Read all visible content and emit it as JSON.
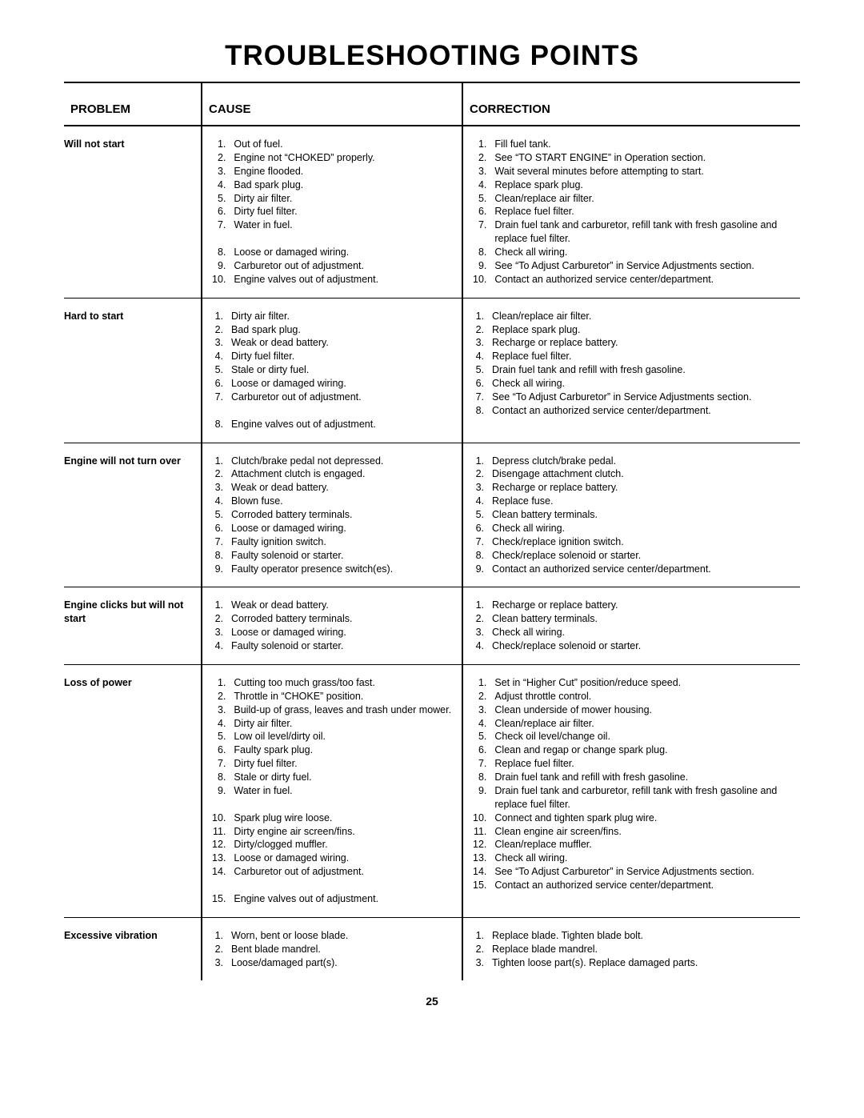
{
  "title": "TROUBLESHOOTING POINTS",
  "page_number": "25",
  "columns": {
    "problem": "PROBLEM",
    "cause": "CAUSE",
    "correction": "CORRECTION"
  },
  "sections": [
    {
      "problem": "Will not start",
      "causes": [
        "Out of fuel.",
        "Engine not “CHOKED” properly.",
        "Engine flooded.",
        "Bad spark plug.",
        "Dirty air filter.",
        "Dirty fuel filter.",
        "Water in fuel.",
        "Loose or damaged wiring.",
        "Carburetor out of adjustment.",
        "Engine valves out of adjustment."
      ],
      "corrections": [
        "Fill fuel tank.",
        "See “TO START ENGINE” in Operation section.",
        "Wait several minutes before attempting to start.",
        "Replace spark plug.",
        "Clean/replace air filter.",
        "Replace fuel filter.",
        "Drain fuel tank and carburetor, refill tank with fresh gasoline and replace fuel filter.",
        "Check all wiring.",
        "See “To Adjust Carburetor” in Service Adjustments section.",
        "Contact an authorized service center/department."
      ],
      "cause_breaks": [
        7
      ],
      "correction_breaks": []
    },
    {
      "problem": "Hard to start",
      "causes": [
        "Dirty air filter.",
        "Bad spark plug.",
        "Weak or dead battery.",
        "Dirty fuel filter.",
        "Stale or dirty fuel.",
        "Loose or damaged wiring.",
        "Carburetor out of adjustment.",
        "Engine valves out of adjustment."
      ],
      "corrections": [
        "Clean/replace air filter.",
        "Replace spark plug.",
        "Recharge or replace battery.",
        "Replace fuel filter.",
        "Drain fuel tank and refill with fresh gasoline.",
        "Check all wiring.",
        "See “To Adjust Carburetor” in Service Adjustments section.",
        "Contact an authorized service center/department."
      ],
      "cause_breaks": [
        7
      ],
      "correction_breaks": []
    },
    {
      "problem": "Engine will not turn over",
      "causes": [
        "Clutch/brake pedal not depressed.",
        "Attachment clutch is engaged.",
        "Weak or dead battery.",
        "Blown fuse.",
        "Corroded battery terminals.",
        "Loose or damaged wiring.",
        "Faulty ignition switch.",
        "Faulty solenoid or starter.",
        "Faulty operator presence switch(es)."
      ],
      "corrections": [
        "Depress clutch/brake pedal.",
        "Disengage attachment clutch.",
        "Recharge or replace battery.",
        "Replace fuse.",
        "Clean battery terminals.",
        "Check all wiring.",
        "Check/replace ignition switch.",
        "Check/replace solenoid or starter.",
        "Contact an authorized service center/department."
      ],
      "cause_breaks": [],
      "correction_breaks": []
    },
    {
      "problem": "Engine clicks but will not start",
      "causes": [
        "Weak or dead battery.",
        "Corroded battery terminals.",
        "Loose or damaged wiring.",
        "Faulty solenoid or starter."
      ],
      "corrections": [
        "Recharge or replace battery.",
        "Clean battery terminals.",
        "Check all wiring.",
        "Check/replace solenoid or starter."
      ],
      "cause_breaks": [],
      "correction_breaks": []
    },
    {
      "problem": "Loss of power",
      "causes": [
        "Cutting too much grass/too fast.",
        "Throttle in “CHOKE” position.",
        "Build-up of grass, leaves and trash under mower.",
        "Dirty air filter.",
        "Low oil level/dirty oil.",
        "Faulty spark plug.",
        "Dirty fuel filter.",
        "Stale or dirty fuel.",
        "Water in fuel.",
        "Spark plug wire loose.",
        "Dirty engine air screen/fins.",
        "Dirty/clogged muffler.",
        "Loose or damaged wiring.",
        "Carburetor out of adjustment.",
        "Engine valves out of adjustment."
      ],
      "corrections": [
        "Set in “Higher Cut” position/reduce speed.",
        "Adjust throttle control.",
        "Clean underside of mower housing.",
        "Clean/replace air filter.",
        "Check oil level/change oil.",
        "Clean and regap or change spark plug.",
        "Replace fuel filter.",
        "Drain fuel tank and refill with fresh gasoline.",
        "Drain fuel tank and carburetor, refill tank with fresh gasoline and replace fuel filter.",
        "Connect and tighten spark plug wire.",
        "Clean engine air screen/fins.",
        "Clean/replace muffler.",
        "Check all wiring.",
        "See “To Adjust Carburetor” in Service Adjustments section.",
        "Contact an authorized service center/department."
      ],
      "cause_breaks": [
        9,
        14
      ],
      "correction_breaks": []
    },
    {
      "problem": "Excessive vibration",
      "causes": [
        "Worn, bent or loose blade.",
        "Bent blade mandrel.",
        "Loose/damaged part(s)."
      ],
      "corrections": [
        "Replace blade.  Tighten blade bolt.",
        "Replace blade mandrel.",
        "Tighten loose part(s).  Replace damaged parts."
      ],
      "cause_breaks": [],
      "correction_breaks": []
    }
  ]
}
